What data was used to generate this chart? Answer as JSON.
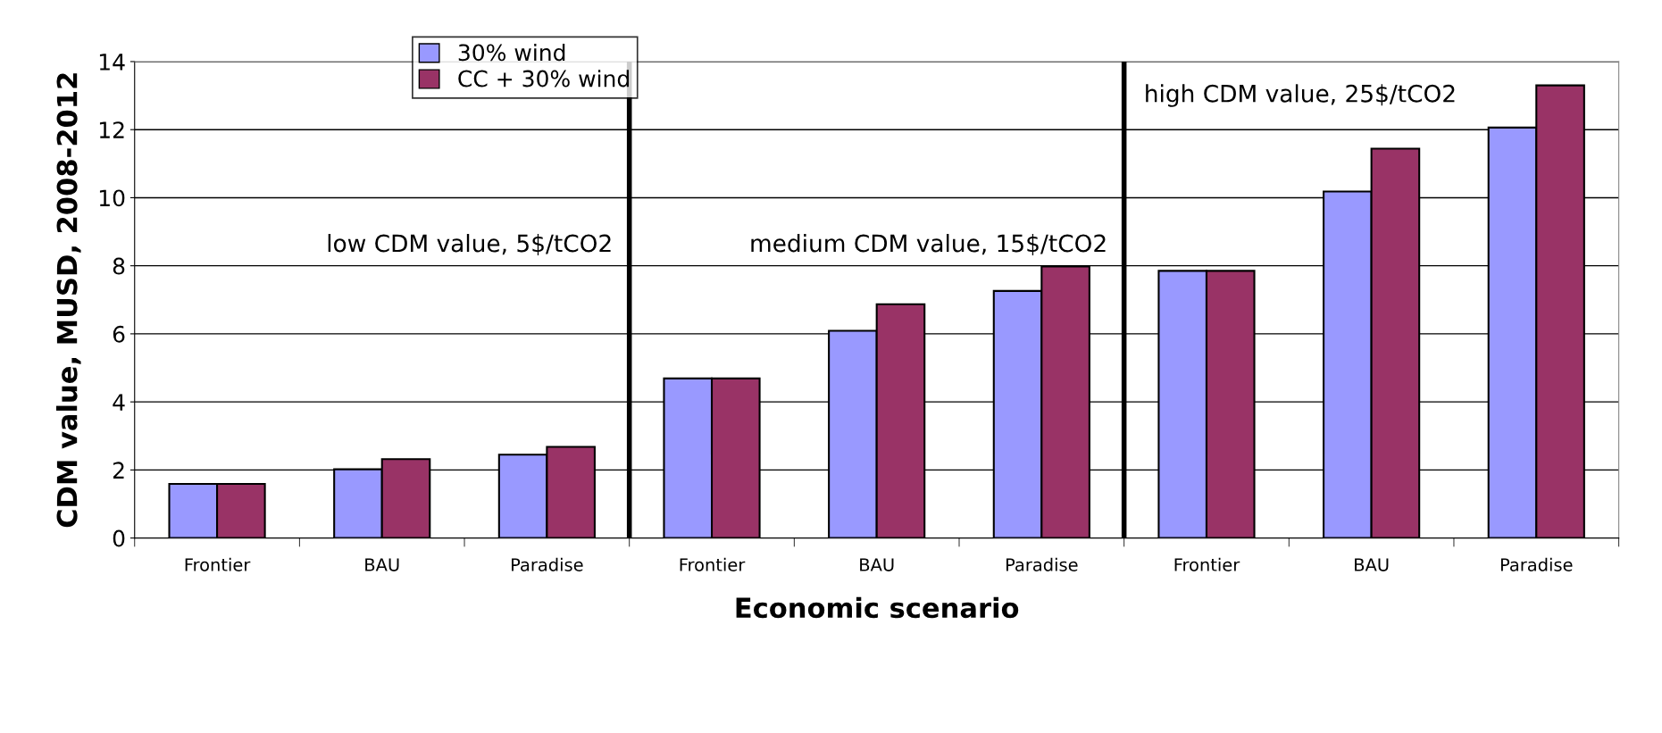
{
  "chart_data": {
    "type": "bar",
    "xlabel": "Economic scenario",
    "ylabel": "CDM value, MUSD, 2008-2012",
    "categories": [
      "Frontier",
      "BAU",
      "Paradise",
      "Frontier",
      "BAU",
      "Paradise",
      "Frontier",
      "BAU",
      "Paradise"
    ],
    "series": [
      {
        "name": "30% wind",
        "color": "#9999ff",
        "values": [
          1.59,
          2.02,
          2.45,
          4.69,
          6.09,
          7.26,
          7.85,
          10.18,
          12.06
        ]
      },
      {
        "name": "CC + 30% wind",
        "color": "#993366",
        "values": [
          1.59,
          2.32,
          2.68,
          4.69,
          6.87,
          7.98,
          7.85,
          11.44,
          13.3
        ]
      }
    ],
    "ylim": [
      0,
      14
    ],
    "yticks": [
      0,
      2,
      4,
      6,
      8,
      10,
      12,
      14
    ],
    "grid": "y",
    "legend": "top",
    "annotations": [
      "low CDM value, 5$/tCO2",
      "medium CDM value, 15$/tCO2",
      "high CDM value, 25$/tCO2"
    ]
  }
}
